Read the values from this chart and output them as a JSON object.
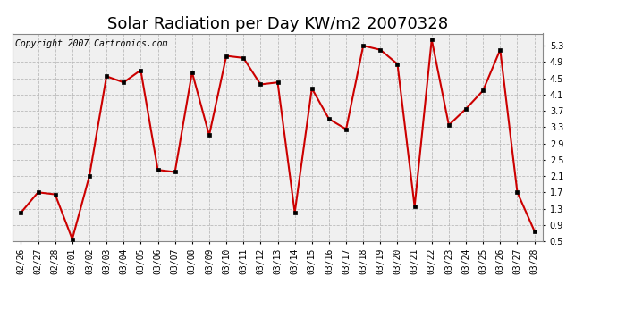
{
  "title": "Solar Radiation per Day KW/m2 20070328",
  "copyright": "Copyright 2007 Cartronics.com",
  "dates": [
    "02/26",
    "02/27",
    "02/28",
    "03/01",
    "03/02",
    "03/03",
    "03/04",
    "03/05",
    "03/06",
    "03/07",
    "03/08",
    "03/09",
    "03/10",
    "03/11",
    "03/12",
    "03/13",
    "03/14",
    "03/15",
    "03/16",
    "03/17",
    "03/18",
    "03/19",
    "03/20",
    "03/21",
    "03/22",
    "03/23",
    "03/24",
    "03/25",
    "03/26",
    "03/27",
    "03/28"
  ],
  "values": [
    1.2,
    1.7,
    1.65,
    0.55,
    2.1,
    4.55,
    4.4,
    4.7,
    2.25,
    2.2,
    4.65,
    3.1,
    5.05,
    5.0,
    4.35,
    4.4,
    1.2,
    4.25,
    3.5,
    3.25,
    5.3,
    5.2,
    4.85,
    1.35,
    5.45,
    3.35,
    3.75,
    4.2,
    5.2,
    1.7,
    0.75
  ],
  "line_color": "#cc0000",
  "marker": "s",
  "marker_size": 3,
  "marker_color": "#000000",
  "ylim_min": 0.5,
  "ylim_max": 5.6,
  "yticks": [
    0.5,
    0.9,
    1.3,
    1.7,
    2.1,
    2.5,
    2.9,
    3.3,
    3.7,
    4.1,
    4.5,
    4.9,
    5.3
  ],
  "ytick_labels": [
    "0.5",
    "0.9",
    "1.3",
    "1.7",
    "2.1",
    "2.5",
    "2.9",
    "3.3",
    "3.7",
    "4.1",
    "4.5",
    "4.9",
    "5.3"
  ],
  "grid_color": "#bbbbbb",
  "bg_color": "#ffffff",
  "plot_bg_color": "#f0f0f0",
  "title_fontsize": 13,
  "copyright_fontsize": 7,
  "tick_fontsize": 7
}
